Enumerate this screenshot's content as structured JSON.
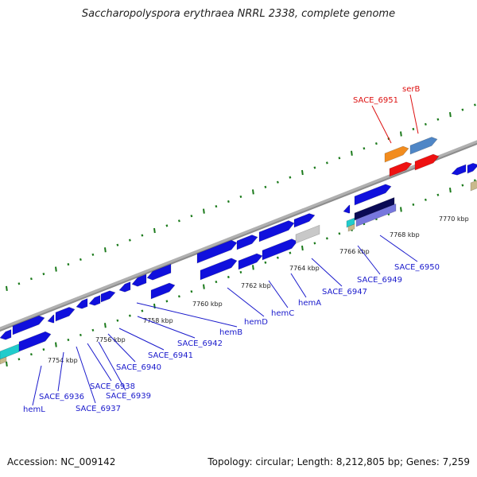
{
  "title": "Saccharopolyspora erythraea NRRL 2338, complete genome",
  "footer": {
    "accession": "Accession: NC_009142",
    "summary": "Topology: circular; Length: 8,212,805 bp; Genes: 7,259"
  },
  "colors": {
    "backbone": "#8c8c8c",
    "tick": "#1b7a1b",
    "gene": "#1010dd",
    "gene_dark": "#0a0a9a",
    "label_blue": "#1a1acc",
    "label_red": "#dd1111",
    "orange": "#f28c1e",
    "steel": "#4f86c6",
    "red": "#ee1111",
    "cyan": "#22cccc",
    "grey": "#c8c8c8",
    "tan": "#c8b98c",
    "navy": "#0a0a55",
    "violet": "#7777dd"
  },
  "scale_labels": [
    "7754 kbp",
    "7756 kbp",
    "7758 kbp",
    "7760 kbp",
    "7762 kbp",
    "7764 kbp",
    "7766 kbp",
    "7768 kbp",
    "7770 kbp"
  ],
  "gene_labels": [
    {
      "name": "hemL",
      "color": "blue"
    },
    {
      "name": "SACE_6936",
      "color": "blue"
    },
    {
      "name": "SACE_6937",
      "color": "blue"
    },
    {
      "name": "SACE_6938",
      "color": "blue"
    },
    {
      "name": "SACE_6939",
      "color": "blue"
    },
    {
      "name": "SACE_6940",
      "color": "blue"
    },
    {
      "name": "SACE_6941",
      "color": "blue"
    },
    {
      "name": "SACE_6942",
      "color": "blue"
    },
    {
      "name": "hemB",
      "color": "blue"
    },
    {
      "name": "hemD",
      "color": "blue"
    },
    {
      "name": "hemC",
      "color": "blue"
    },
    {
      "name": "hemA",
      "color": "blue"
    },
    {
      "name": "SACE_6947",
      "color": "blue"
    },
    {
      "name": "SACE_6949",
      "color": "blue"
    },
    {
      "name": "SACE_6950",
      "color": "blue"
    },
    {
      "name": "SACE_6951",
      "color": "red"
    },
    {
      "name": "serB",
      "color": "red"
    }
  ]
}
